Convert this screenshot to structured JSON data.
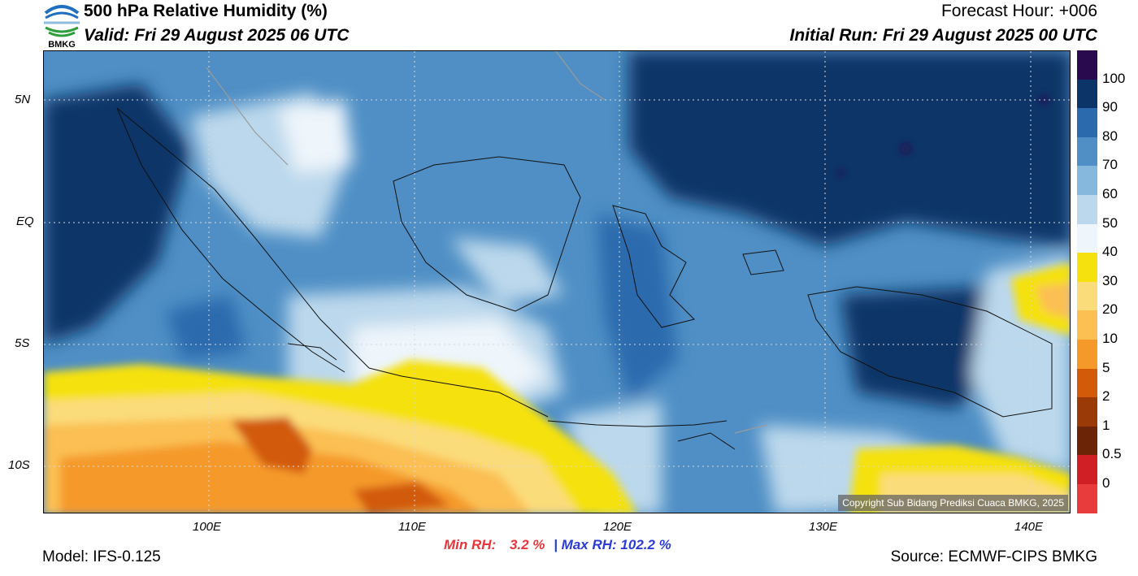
{
  "header": {
    "title": "500 hPa Relative Humidity (%)",
    "valid": "Valid: Fri 29 August 2025 06 UTC",
    "forecast_hour": "Forecast Hour: +006",
    "initial_run": "Initial Run: Fri 29 August 2025 00 UTC",
    "logo_text": "BMKG"
  },
  "map": {
    "lat_labels": [
      "5N",
      "EQ",
      "5S",
      "10S"
    ],
    "lon_labels": [
      "100E",
      "110E",
      "120E",
      "130E",
      "140E"
    ],
    "copyright": "Copyright Sub Bidang Prediksi Cuaca BMKG, 2025"
  },
  "colorbar": {
    "labels": [
      "100",
      "90",
      "80",
      "70",
      "60",
      "50",
      "40",
      "30",
      "20",
      "10",
      "5",
      "2",
      "1",
      "0.5",
      "0"
    ],
    "colors": [
      "#2a0a4e",
      "#0c3468",
      "#2b6aad",
      "#4f8fc5",
      "#86b7dc",
      "#bcd8ec",
      "#eef5fb",
      "#f5e10d",
      "#fbdc7a",
      "#fbbf52",
      "#f59a2a",
      "#d25a08",
      "#9a3a06",
      "#6b2405",
      "#d01f25",
      "#e83c3c"
    ]
  },
  "stats": {
    "min_label": "Min RH:",
    "min_value": "3.2 %",
    "separator": "|",
    "max_label": "Max RH:",
    "max_value": "102.2 %"
  },
  "footer": {
    "model": "Model: IFS-0.125",
    "source": "Source: ECMWF-CIPS BMKG"
  }
}
